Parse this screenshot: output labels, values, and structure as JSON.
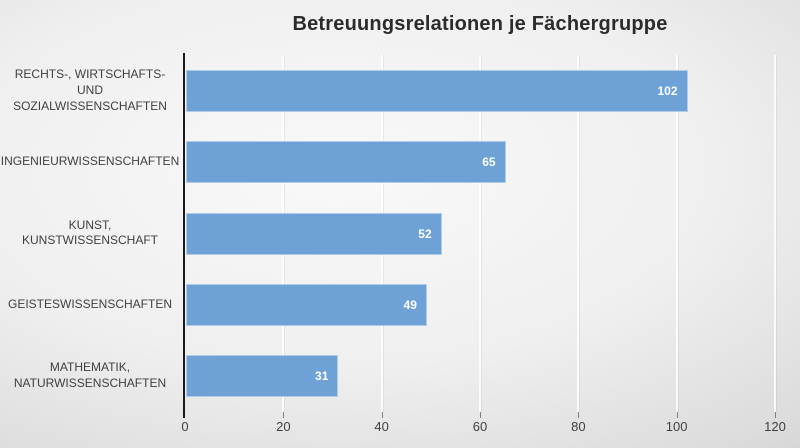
{
  "chart_data": {
    "type": "bar",
    "orientation": "horizontal",
    "title": "Betreuungsrelationen je Fächergruppe",
    "categories": [
      "RECHTS-, WIRTSCHAFTS- UND\nSOZIALWISSENSCHAFTEN",
      "INGENIEURWISSENSCHAFTEN",
      "KUNST, KUNSTWISSENSCHAFT",
      "GEISTESWISSENSCHAFTEN",
      "MATHEMATIK,\nNATURWISSENSCHAFTEN"
    ],
    "values": [
      102,
      65,
      52,
      49,
      31
    ],
    "value_labels": [
      "102",
      "65",
      "52",
      "49",
      "31"
    ],
    "x_ticks": [
      0,
      20,
      40,
      60,
      80,
      100,
      120
    ],
    "xlim": [
      0,
      120
    ],
    "xlabel": "",
    "ylabel": "",
    "grid": true,
    "legend": false,
    "colors": {
      "bar": "#6ea2d7",
      "title": "#2b2b2b",
      "category_label": "#3f3f3f",
      "tick_label": "#404040",
      "axis_line": "#1a1a1a",
      "gridline": "#ffffff",
      "value_label": "#ffffff"
    }
  }
}
